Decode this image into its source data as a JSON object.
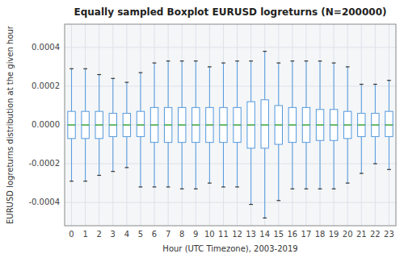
{
  "chart_data": {
    "type": "box",
    "title": "Equally sampled Boxplot EURUSD logreturns (N=200000)",
    "xlabel": "Hour (UTC Timezone), 2003-2019",
    "ylabel": "EURUSD logreturns distribution at the given hour",
    "categories": [
      0,
      1,
      2,
      3,
      4,
      5,
      6,
      7,
      8,
      9,
      10,
      11,
      12,
      13,
      14,
      15,
      16,
      17,
      18,
      19,
      20,
      21,
      22,
      23
    ],
    "whislo": [
      -0.00029,
      -0.00029,
      -0.00026,
      -0.00024,
      -0.00022,
      -0.00032,
      -0.00032,
      -0.00032,
      -0.00033,
      -0.00033,
      -0.0003,
      -0.00032,
      -0.00032,
      -0.00041,
      -0.00048,
      -0.00039,
      -0.00033,
      -0.00033,
      -0.00033,
      -0.00033,
      -0.0003,
      -0.00025,
      -0.0002,
      -0.00023
    ],
    "q1": [
      -7e-05,
      -7e-05,
      -7e-05,
      -6e-05,
      -6e-05,
      -6e-05,
      -9e-05,
      -9e-05,
      -9e-05,
      -9e-05,
      -9e-05,
      -9e-05,
      -9e-05,
      -0.00012,
      -0.00012,
      -0.0001,
      -9e-05,
      -9e-05,
      -8e-05,
      -8e-05,
      -7e-05,
      -6e-05,
      -6e-05,
      -6e-05
    ],
    "med": [
      0.0,
      0.0,
      0.0,
      0.0,
      0.0,
      0.0,
      0.0,
      0.0,
      0.0,
      0.0,
      0.0,
      0.0,
      0.0,
      0.0,
      0.0,
      0.0,
      0.0,
      0.0,
      0.0,
      0.0,
      0.0,
      0.0,
      0.0,
      0.0
    ],
    "q3": [
      7e-05,
      7e-05,
      7e-05,
      6e-05,
      6e-05,
      7e-05,
      9e-05,
      9e-05,
      9e-05,
      9e-05,
      9e-05,
      9e-05,
      9e-05,
      0.00012,
      0.00013,
      0.0001,
      9e-05,
      9e-05,
      8e-05,
      8e-05,
      7e-05,
      6e-05,
      6e-05,
      7e-05
    ],
    "whishi": [
      0.00029,
      0.00029,
      0.00026,
      0.00024,
      0.00022,
      0.00027,
      0.00032,
      0.00033,
      0.00033,
      0.00033,
      0.0003,
      0.00032,
      0.00033,
      0.00033,
      0.00038,
      0.00032,
      0.00033,
      0.00033,
      0.00033,
      0.00032,
      0.0003,
      0.00021,
      0.00021,
      0.00023
    ],
    "color": "#5599dd",
    "ylim": [
      -0.00052,
      0.00052
    ],
    "yticks": [
      -0.0004,
      -0.0002,
      {
        "value": 0.0,
        "label": "0.0000"
      },
      0.0002,
      0.0004
    ],
    "grid": true
  }
}
